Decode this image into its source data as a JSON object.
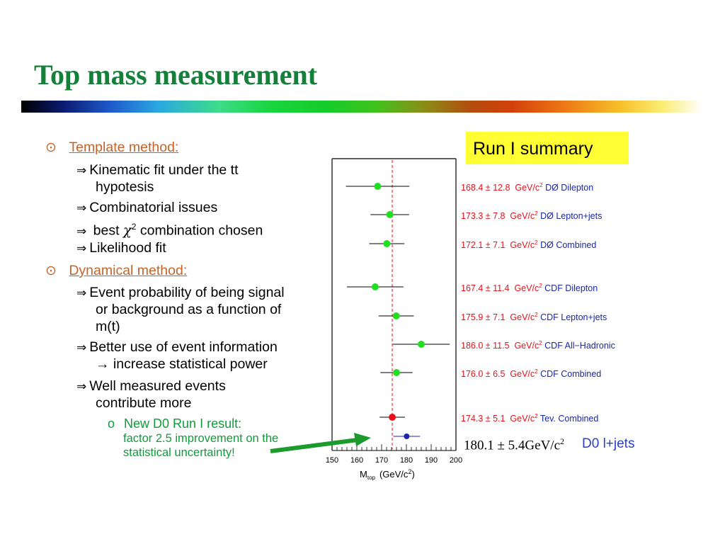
{
  "title": "Top mass measurement",
  "bullets": {
    "template_head": "Template method:",
    "t1a": "Kinematic fit under the tt",
    "t1b": "hypotesis",
    "t2": "Combinatorial issues",
    "t3_pre": "best ",
    "t3_chi": "χ",
    "t3_sup": "2",
    "t3_post": " combination chosen",
    "t4": "Likelihood fit",
    "dynamical_head": "Dynamical method:",
    "d1a": "Event probability of being signal",
    "d1b": "or background as a function of",
    "d1c": "m(t)",
    "d2a": "Better use of event information",
    "d2b": "→ increase statistical power",
    "d3a": "Well measured events",
    "d3b": "contribute more",
    "sub_marker": "o",
    "sub_head": "New D0 Run I result:",
    "sub_l1": "factor 2.5 improvement on the",
    "sub_l2": "statistical uncertainty!"
  },
  "summary_label": "Run I summary",
  "chart_data": {
    "type": "scatter",
    "xlim": [
      150,
      200
    ],
    "ticks": [
      "150",
      "160",
      "170",
      "180",
      "190",
      "200"
    ],
    "xlabel_main": "M",
    "xlabel_sub": "top",
    "xlabel_units": "(GeV/c",
    "xlabel_sup": "2",
    "xlabel_close": ")",
    "reference_mass": 174.3,
    "points": [
      {
        "mass": 168.4,
        "err": 12.8,
        "value": "168.4 ± 12.8",
        "unit": "GeV/c",
        "unit_sup": "2",
        "experiment": "DØ Dilepton",
        "color": "#22dd22"
      },
      {
        "mass": 173.3,
        "err": 7.8,
        "value": "173.3 ±  7.8",
        "unit": "GeV/c",
        "unit_sup": "2",
        "experiment": "DØ Lepton+jets",
        "color": "#22dd22"
      },
      {
        "mass": 172.1,
        "err": 7.1,
        "value": "172.1 ±  7.1",
        "unit": "GeV/c",
        "unit_sup": "2",
        "experiment": "DØ Combined",
        "color": "#22dd22"
      },
      {
        "mass": 167.4,
        "err": 11.4,
        "value": "167.4 ± 11.4",
        "unit": "GeV/c",
        "unit_sup": "2",
        "experiment": "CDF Dilepton",
        "color": "#22dd22"
      },
      {
        "mass": 175.9,
        "err": 7.1,
        "value": "175.9 ±  7.1",
        "unit": "GeV/c",
        "unit_sup": "2",
        "experiment": "CDF Lepton+jets",
        "color": "#22dd22"
      },
      {
        "mass": 186.0,
        "err": 11.5,
        "value": "186.0 ± 11.5",
        "unit": "GeV/c",
        "unit_sup": "2",
        "experiment": "CDF All−Hadronic",
        "color": "#22dd22"
      },
      {
        "mass": 176.0,
        "err": 6.5,
        "value": "176.0 ±  6.5",
        "unit": "GeV/c",
        "unit_sup": "2",
        "experiment": "CDF Combined",
        "color": "#22dd22"
      },
      {
        "mass": 174.3,
        "err": 5.1,
        "value": "174.3 ±  5.1",
        "unit": "GeV/c",
        "unit_sup": "2",
        "experiment": "Tev. Combined",
        "color": "#e8121d"
      },
      {
        "mass": 180.1,
        "err": 5.4,
        "color": "#1b26a8"
      }
    ],
    "new_result": {
      "value": "180.1 ± 5.4GeV/c",
      "unit_sup": "2",
      "label": "D0 l+jets"
    }
  },
  "colors": {
    "title": "#14803a",
    "bullet_head": "#c4642a",
    "callout_arrow": "#1c9a2b"
  }
}
